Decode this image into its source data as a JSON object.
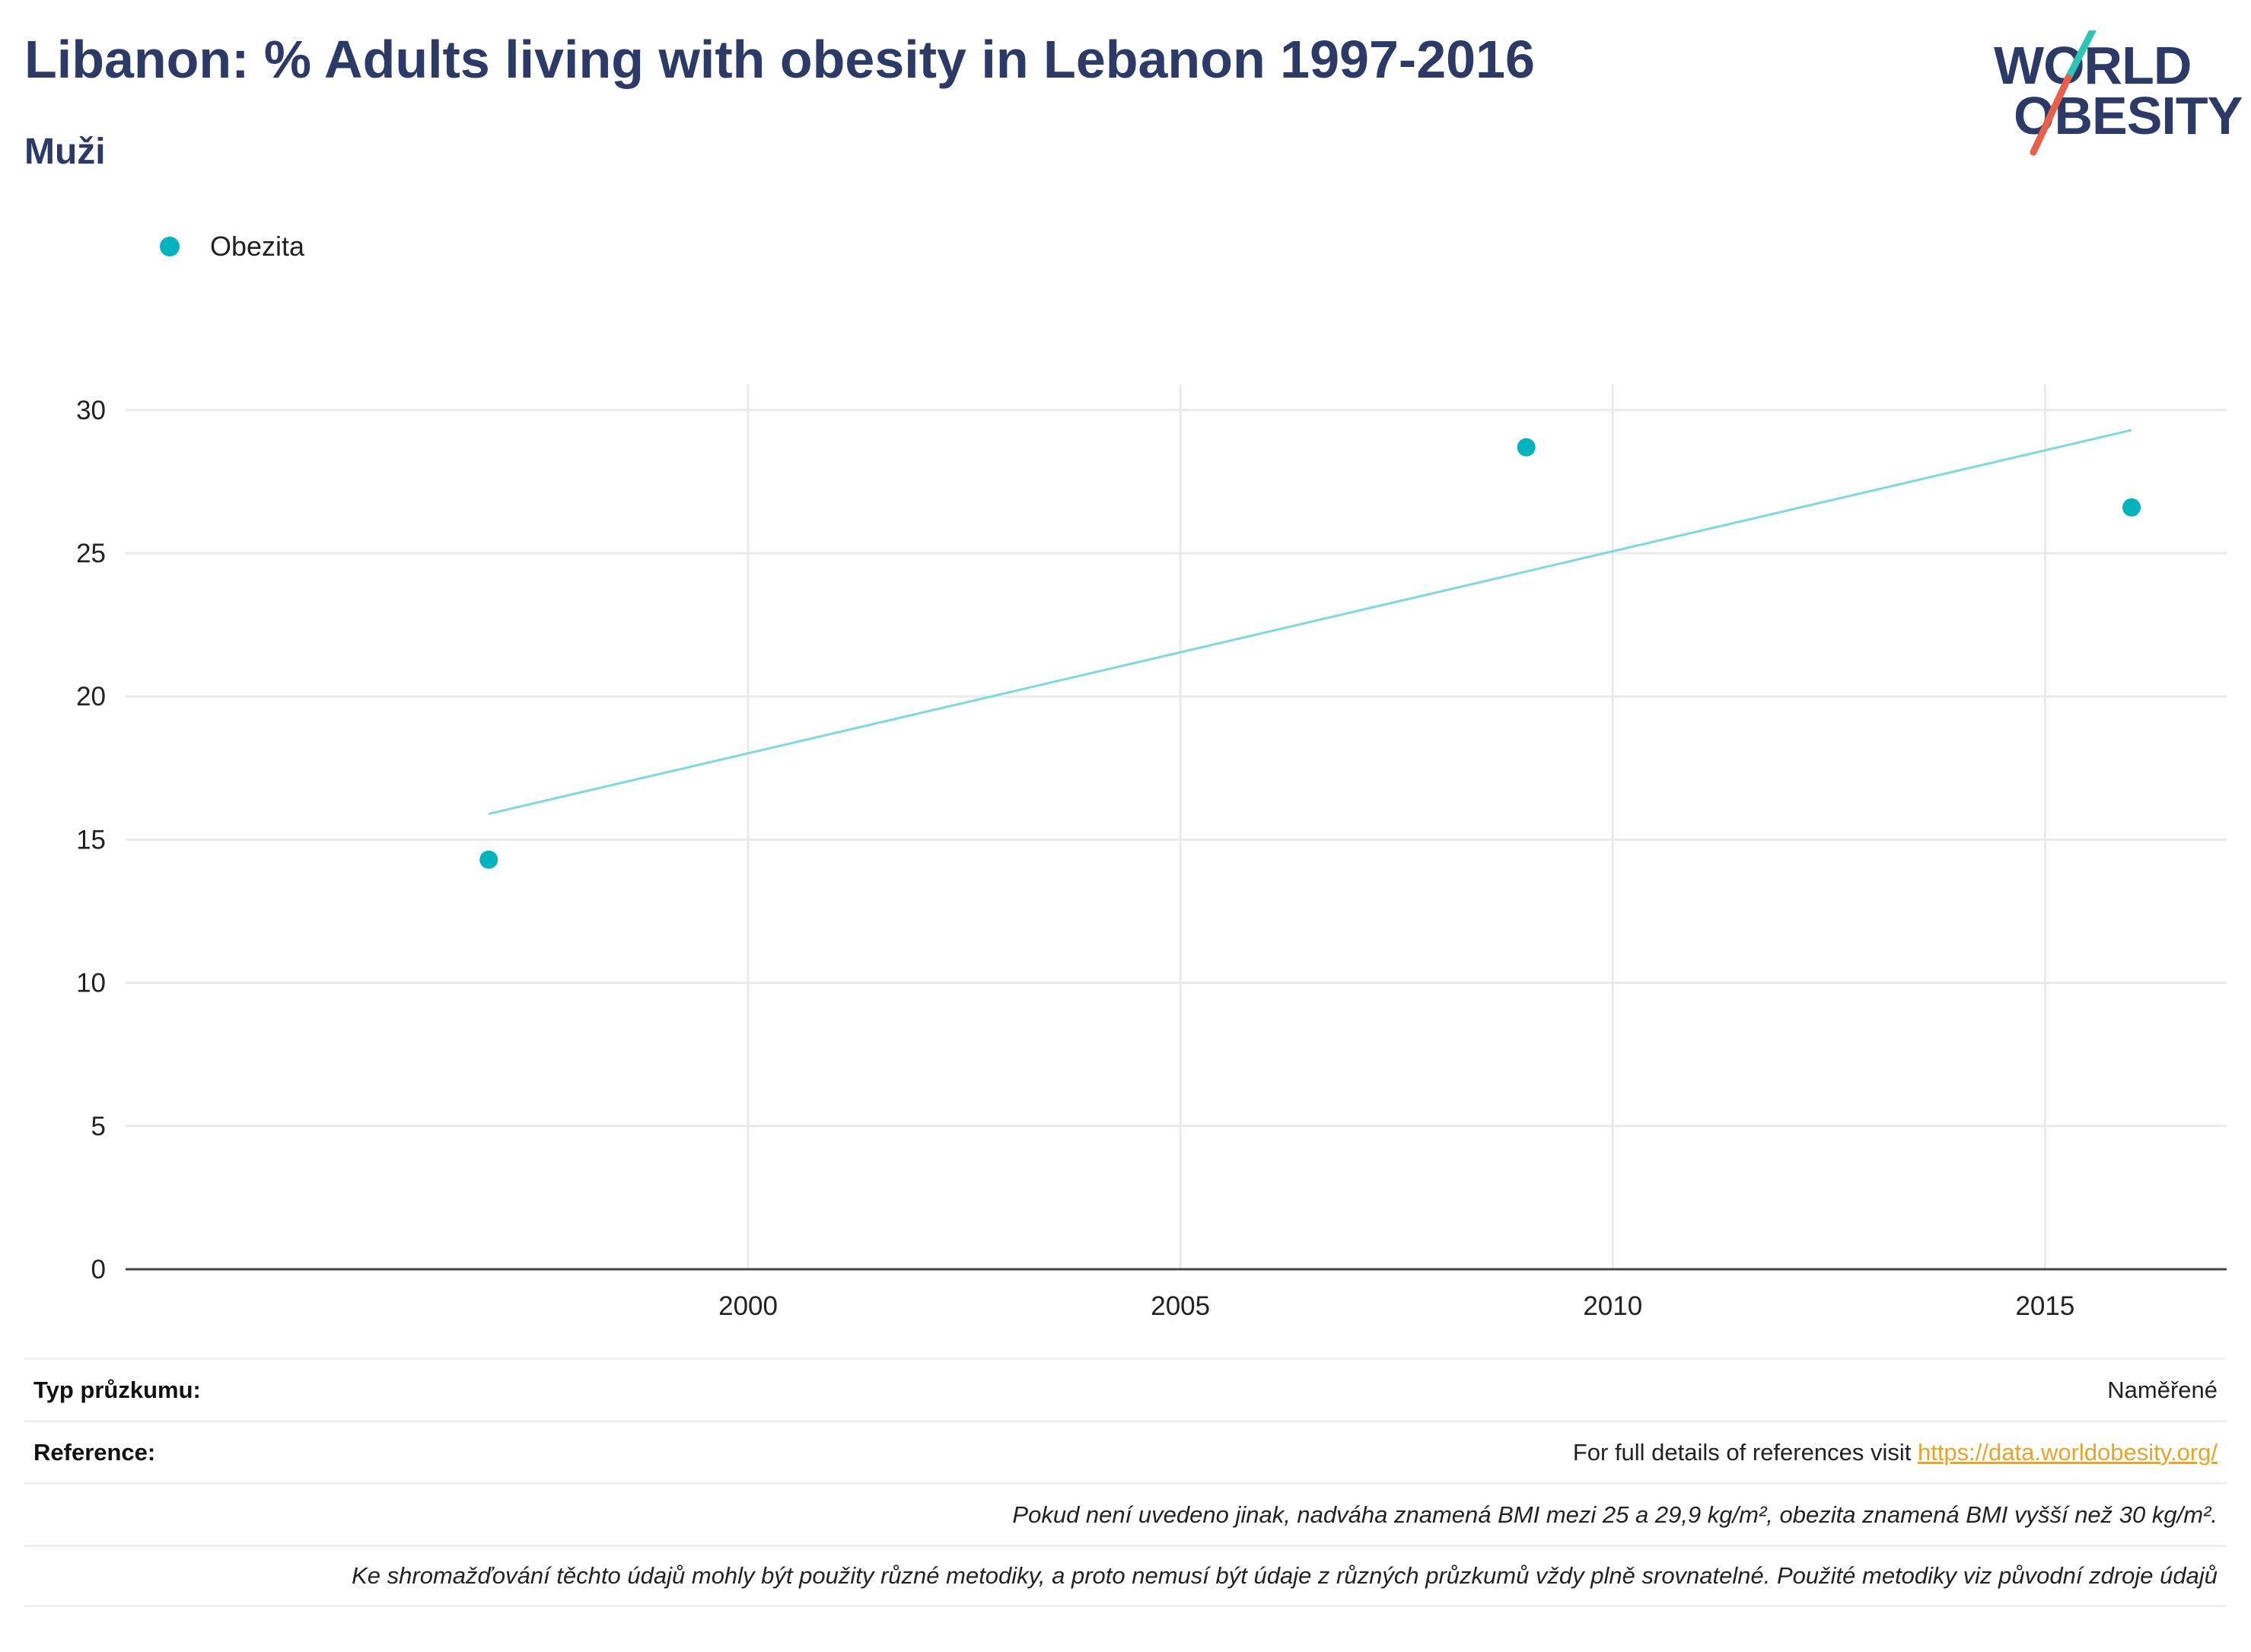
{
  "header": {
    "title": "Libanon: % Adults living with obesity in Lebanon 1997-2016",
    "subtitle": "Muži"
  },
  "logo": {
    "line1": "WORLD",
    "line2": "OBESITY",
    "accent_colors": [
      "#2ec4b6",
      "#e8604c"
    ]
  },
  "legend": {
    "label": "Obezita",
    "color": "#00b3bd"
  },
  "chart_data": {
    "type": "scatter",
    "series": [
      {
        "name": "Obezita",
        "x": [
          1997,
          2009,
          2016
        ],
        "y": [
          14.3,
          28.7,
          26.6
        ],
        "color": "#00b3bd"
      }
    ],
    "trendline": {
      "x": [
        1997,
        2016
      ],
      "y": [
        15.9,
        29.3
      ],
      "color": "#7fd8df"
    },
    "xlim": [
      1992.8,
      2017.1
    ],
    "ylim": [
      0,
      30.9
    ],
    "x_ticks": [
      2000,
      2005,
      2010,
      2015
    ],
    "y_ticks": [
      0,
      5,
      10,
      15,
      20,
      25,
      30
    ],
    "grid": true,
    "legend_position": "top-left"
  },
  "footer": {
    "survey_type_label": "Typ průzkumu:",
    "survey_type_value": "Naměřené",
    "reference_label": "Reference:",
    "reference_text": "For full details of references visit",
    "reference_link": "https://data.worldobesity.org/",
    "note1": "Pokud není uvedeno jinak, nadváha znamená BMI mezi 25 a 29,9 kg/m², obezita znamená BMI vyšší než 30 kg/m².",
    "note2": "Ke shromažďování těchto údajů mohly být použity různé metodiky, a proto nemusí být údaje z různých průzkumů vždy plně srovnatelné. Použité metodiky viz původní zdroje údajů"
  }
}
